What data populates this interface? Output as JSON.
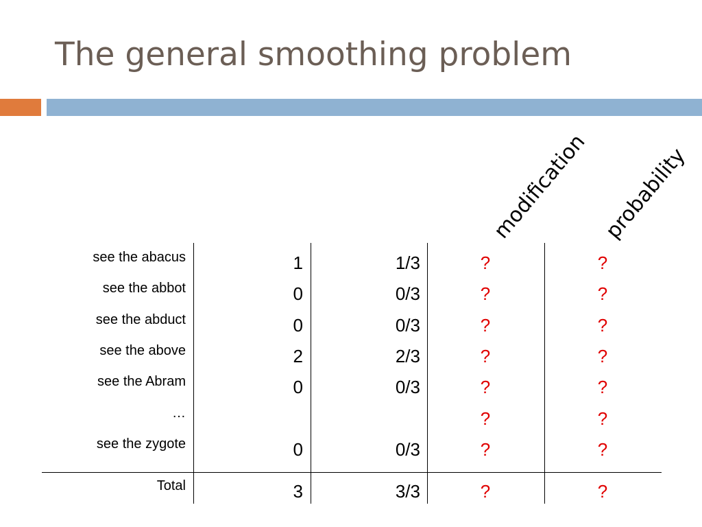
{
  "title": "The general smoothing problem",
  "colors": {
    "title": "#6b5e55",
    "accent_orange": "#e07b3c",
    "accent_blue": "#8fb2d2",
    "question": "#e00000"
  },
  "headers": {
    "modification": "modification",
    "probability": "probability"
  },
  "rows": [
    {
      "label": "see the abacus",
      "count": "1",
      "fraction": "1/3",
      "modification": "?",
      "probability": "?"
    },
    {
      "label": "see the abbot",
      "count": "0",
      "fraction": "0/3",
      "modification": "?",
      "probability": "?"
    },
    {
      "label": "see the abduct",
      "count": "0",
      "fraction": "0/3",
      "modification": "?",
      "probability": "?"
    },
    {
      "label": "see the above",
      "count": "2",
      "fraction": "2/3",
      "modification": "?",
      "probability": "?"
    },
    {
      "label": "see the Abram",
      "count": "0",
      "fraction": "0/3",
      "modification": "?",
      "probability": "?"
    },
    {
      "label": "…",
      "count": "",
      "fraction": "",
      "modification": "?",
      "probability": "?"
    },
    {
      "label": "see the zygote",
      "count": "0",
      "fraction": "0/3",
      "modification": "?",
      "probability": "?"
    }
  ],
  "total": {
    "label": "Total",
    "count": "3",
    "fraction": "3/3",
    "modification": "?",
    "probability": "?"
  }
}
